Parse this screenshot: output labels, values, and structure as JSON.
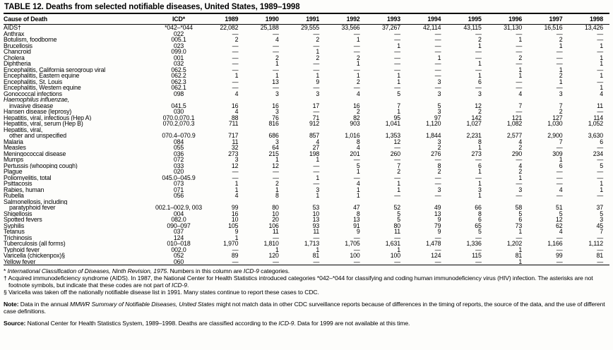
{
  "title": "TABLE 12.  Deaths from selected notifiable diseases, United States, 1989–1998",
  "table": {
    "col_headers": [
      "Cause of Death",
      "ICD*",
      "1989",
      "1990",
      "1991",
      "1992",
      "1993",
      "1994",
      "1995",
      "1996",
      "1997",
      "1998"
    ],
    "rows": [
      {
        "cause": "AIDS†",
        "icd": "*042–*044",
        "values": [
          "22,082",
          "25,188",
          "29,555",
          "33,566",
          "37,267",
          "42,114",
          "43,115",
          "31,130",
          "16,516",
          "13,426"
        ]
      },
      {
        "cause": "Anthrax",
        "icd": "022",
        "values": [
          "—",
          "—",
          "—",
          "—",
          "—",
          "—",
          "—",
          "—",
          "—",
          "—"
        ]
      },
      {
        "cause": "Botulism, foodborne",
        "icd": "005.1",
        "values": [
          "2",
          "4",
          "2",
          "1",
          "—",
          "—",
          "2",
          "1",
          "2",
          "—"
        ]
      },
      {
        "cause": "Brucellosis",
        "icd": "023",
        "values": [
          "—",
          "—",
          "—",
          "—",
          "1",
          "—",
          "1",
          "—",
          "1",
          "1"
        ]
      },
      {
        "cause": "Chancroid",
        "icd": "099.0",
        "values": [
          "—",
          "—",
          "1",
          "—",
          "—",
          "—",
          "—",
          "—",
          "—",
          "—"
        ]
      },
      {
        "cause": "Cholera",
        "icd": "001",
        "values": [
          "—",
          "2",
          "2",
          "2",
          "—",
          "1",
          "—",
          "2",
          "—",
          "1"
        ]
      },
      {
        "cause": "Diphtheria",
        "icd": "032",
        "values": [
          "—",
          "1",
          "—",
          "1",
          "—",
          "—",
          "1",
          "—",
          "—",
          "1"
        ]
      },
      {
        "cause": "Encephalitis, California serogroup viral",
        "icd": "062.5",
        "values": [
          "—",
          "—",
          "—",
          "—",
          "—",
          "—",
          "—",
          "1",
          "1",
          "—"
        ]
      },
      {
        "cause": "Encephalitis, Eastern equine",
        "icd": "062.2",
        "values": [
          "1",
          "1",
          "1",
          "1",
          "1",
          "—",
          "1",
          "1",
          "2",
          "1"
        ]
      },
      {
        "cause": "Encephalitis, St. Louis",
        "icd": "062.3",
        "values": [
          "—",
          "13",
          "9",
          "2",
          "1",
          "3",
          "6",
          "—",
          "1",
          "—"
        ]
      },
      {
        "cause": "Encephalitis, Western equine",
        "icd": "062.1",
        "values": [
          "—",
          "—",
          "—",
          "—",
          "—",
          "—",
          "—",
          "—",
          "—",
          "1"
        ]
      },
      {
        "cause": "Gonococcal infections",
        "icd": "098",
        "values": [
          "4",
          "3",
          "3",
          "4",
          "5",
          "3",
          "3",
          "4",
          "3",
          "4"
        ]
      },
      {
        "cause": "Haemophilus influenzae,",
        "italic": true,
        "icd": "",
        "values": []
      },
      {
        "cause": "invasive disease",
        "indent": true,
        "icd": "041.5",
        "values": [
          "16",
          "16",
          "17",
          "16",
          "7",
          "5",
          "12",
          "7",
          "7",
          "11"
        ]
      },
      {
        "cause": "Hansen disease (leprosy)",
        "icd": "030",
        "values": [
          "4",
          "3",
          "—",
          "2",
          "1",
          "3",
          "2",
          "—",
          "2",
          "—"
        ]
      },
      {
        "cause": "Hepatitis, viral, infectious (Hep A)",
        "icd": "070.0,070.1",
        "values": [
          "88",
          "76",
          "71",
          "82",
          "95",
          "97",
          "142",
          "121",
          "127",
          "114"
        ]
      },
      {
        "cause": "Hepatitis, viral, serum (Hep B)",
        "icd": "070.2,070.3",
        "values": [
          "711",
          "816",
          "912",
          "903",
          "1,041",
          "1,120",
          "1,027",
          "1,082",
          "1,030",
          "1,052"
        ]
      },
      {
        "cause": "Hepatitis, viral,",
        "icd": "",
        "values": []
      },
      {
        "cause": "other and unspecified",
        "indent": true,
        "icd": "070.4–070.9",
        "values": [
          "717",
          "686",
          "857",
          "1,016",
          "1,353",
          "1,844",
          "2,231",
          "2,577",
          "2,900",
          "3,630"
        ]
      },
      {
        "cause": "Malaria",
        "icd": "084",
        "values": [
          "11",
          "3",
          "4",
          "8",
          "12",
          "3",
          "8",
          "4",
          "7",
          "6"
        ]
      },
      {
        "cause": "Measles",
        "icd": "055",
        "values": [
          "32",
          "64",
          "27",
          "4",
          "—",
          "2",
          "1",
          "2",
          "—",
          "—"
        ]
      },
      {
        "cause": "Meningococcal disease",
        "icd": "036",
        "values": [
          "273",
          "215",
          "198",
          "201",
          "260",
          "276",
          "273",
          "290",
          "309",
          "234"
        ]
      },
      {
        "cause": "Mumps",
        "icd": "072",
        "values": [
          "3",
          "1",
          "1",
          "—",
          "—",
          "—",
          "—",
          "—",
          "1",
          "—"
        ]
      },
      {
        "cause": "Pertussis (whooping cough)",
        "icd": "033",
        "values": [
          "12",
          "12",
          "—",
          "5",
          "7",
          "8",
          "6",
          "4",
          "6",
          "5"
        ]
      },
      {
        "cause": "Plague",
        "icd": "020",
        "values": [
          "—",
          "—",
          "—",
          "1",
          "2",
          "2",
          "1",
          "2",
          "—",
          "—"
        ]
      },
      {
        "cause": "Poliomyelitis, total",
        "icd": "045.0–045.9",
        "values": [
          "—",
          "—",
          "1",
          "—",
          "—",
          "—",
          "—",
          "1",
          "—",
          "—"
        ]
      },
      {
        "cause": "Psittacosis",
        "icd": "073",
        "values": [
          "1",
          "2",
          "—",
          "4",
          "1",
          "—",
          "1",
          "—",
          "—",
          "1"
        ]
      },
      {
        "cause": "Rabies, human",
        "icd": "071",
        "values": [
          "1",
          "1",
          "3",
          "1",
          "1",
          "3",
          "3",
          "3",
          "4",
          "1"
        ]
      },
      {
        "cause": "Rubella",
        "icd": "056",
        "values": [
          "4",
          "8",
          "1",
          "1",
          "—",
          "—",
          "1",
          "—",
          "—",
          "—"
        ]
      },
      {
        "cause": "Salmonellosis, including",
        "icd": "",
        "values": []
      },
      {
        "cause": "paratyphoid fever",
        "indent": true,
        "icd": "002.1–002.9, 003",
        "values": [
          "99",
          "80",
          "53",
          "47",
          "52",
          "49",
          "66",
          "58",
          "51",
          "37"
        ]
      },
      {
        "cause": "Shigellosis",
        "icd": "004",
        "values": [
          "16",
          "10",
          "10",
          "8",
          "5",
          "13",
          "8",
          "5",
          "5",
          "5"
        ]
      },
      {
        "cause": "Spotted fevers",
        "icd": "082.0",
        "values": [
          "10",
          "20",
          "13",
          "13",
          "5",
          "9",
          "6",
          "6",
          "12",
          "3"
        ]
      },
      {
        "cause": "Syphilis",
        "icd": "090–097",
        "values": [
          "105",
          "106",
          "93",
          "91",
          "80",
          "79",
          "65",
          "73",
          "62",
          "45"
        ]
      },
      {
        "cause": "Tetanus",
        "icd": "037",
        "values": [
          "9",
          "11",
          "11",
          "9",
          "11",
          "9",
          "5",
          "1",
          "4",
          "7"
        ]
      },
      {
        "cause": "Trichinosis",
        "icd": "124",
        "values": [
          "1",
          "—",
          "—",
          "—",
          "—",
          "—",
          "—",
          "—",
          "—",
          "—"
        ]
      },
      {
        "cause": "Tuberculosis (all forms)",
        "icd": "010–018",
        "values": [
          "1,970",
          "1,810",
          "1,713",
          "1,705",
          "1,631",
          "1,478",
          "1,336",
          "1,202",
          "1,166",
          "1,112"
        ]
      },
      {
        "cause": "Typhoid fever",
        "icd": "002.0",
        "values": [
          "—",
          "1",
          "1",
          "—",
          "1",
          "—",
          "—",
          "1",
          "—",
          "—"
        ]
      },
      {
        "cause": "Varicella (chickenpox)§",
        "icd": "052",
        "values": [
          "89",
          "120",
          "81",
          "100",
          "100",
          "124",
          "115",
          "81",
          "99",
          "81"
        ]
      },
      {
        "cause": "Yellow fever",
        "icd": "060",
        "values": [
          "—",
          "—",
          "—",
          "—",
          "—",
          "—",
          "—",
          "1",
          "—",
          "—"
        ]
      }
    ]
  },
  "footnotes": [
    {
      "marker": "*",
      "segments": [
        {
          "t": "International Classification of Diseases, Ninth Revision, 1975",
          "i": true
        },
        {
          "t": ". Numbers in this column are "
        },
        {
          "t": "ICD-9",
          "i": true
        },
        {
          "t": " categories."
        }
      ]
    },
    {
      "marker": "†",
      "segments": [
        {
          "t": "Acquired immunodeficiency syndrome (AIDS). In 1987, the National Center for Health Statistics introduced categories *042–*044 for classifying and coding human immunodeficiency virus (HIV) infection. The asterisks are not footnote symbols, but indicate that these codes are not part of "
        },
        {
          "t": "ICD-9",
          "i": true
        },
        {
          "t": "."
        }
      ]
    },
    {
      "marker": "§",
      "segments": [
        {
          "t": "Varicella was taken off the nationally notifiable disease list in 1991.  Many states continue to report these cases to CDC."
        }
      ]
    }
  ],
  "paragraphs": [
    {
      "name": "note",
      "segments": [
        {
          "t": "Note:",
          "b": true
        },
        {
          "t": " Data in the annual "
        },
        {
          "t": "MMWR Summary of Notifiable Diseases, United States",
          "i": true
        },
        {
          "t": " might not match data in other CDC surveillance reports because of differences in the timing of reports, the source of the data, and the use of different case definitions."
        }
      ]
    },
    {
      "name": "source",
      "segments": [
        {
          "t": "Source:",
          "b": true
        },
        {
          "t": " National Center for Health Statistics System, 1989–1998.  Deaths are classified according to the "
        },
        {
          "t": "ICD-9",
          "i": true
        },
        {
          "t": ". Data for 1999 are not available at this time."
        }
      ]
    }
  ]
}
